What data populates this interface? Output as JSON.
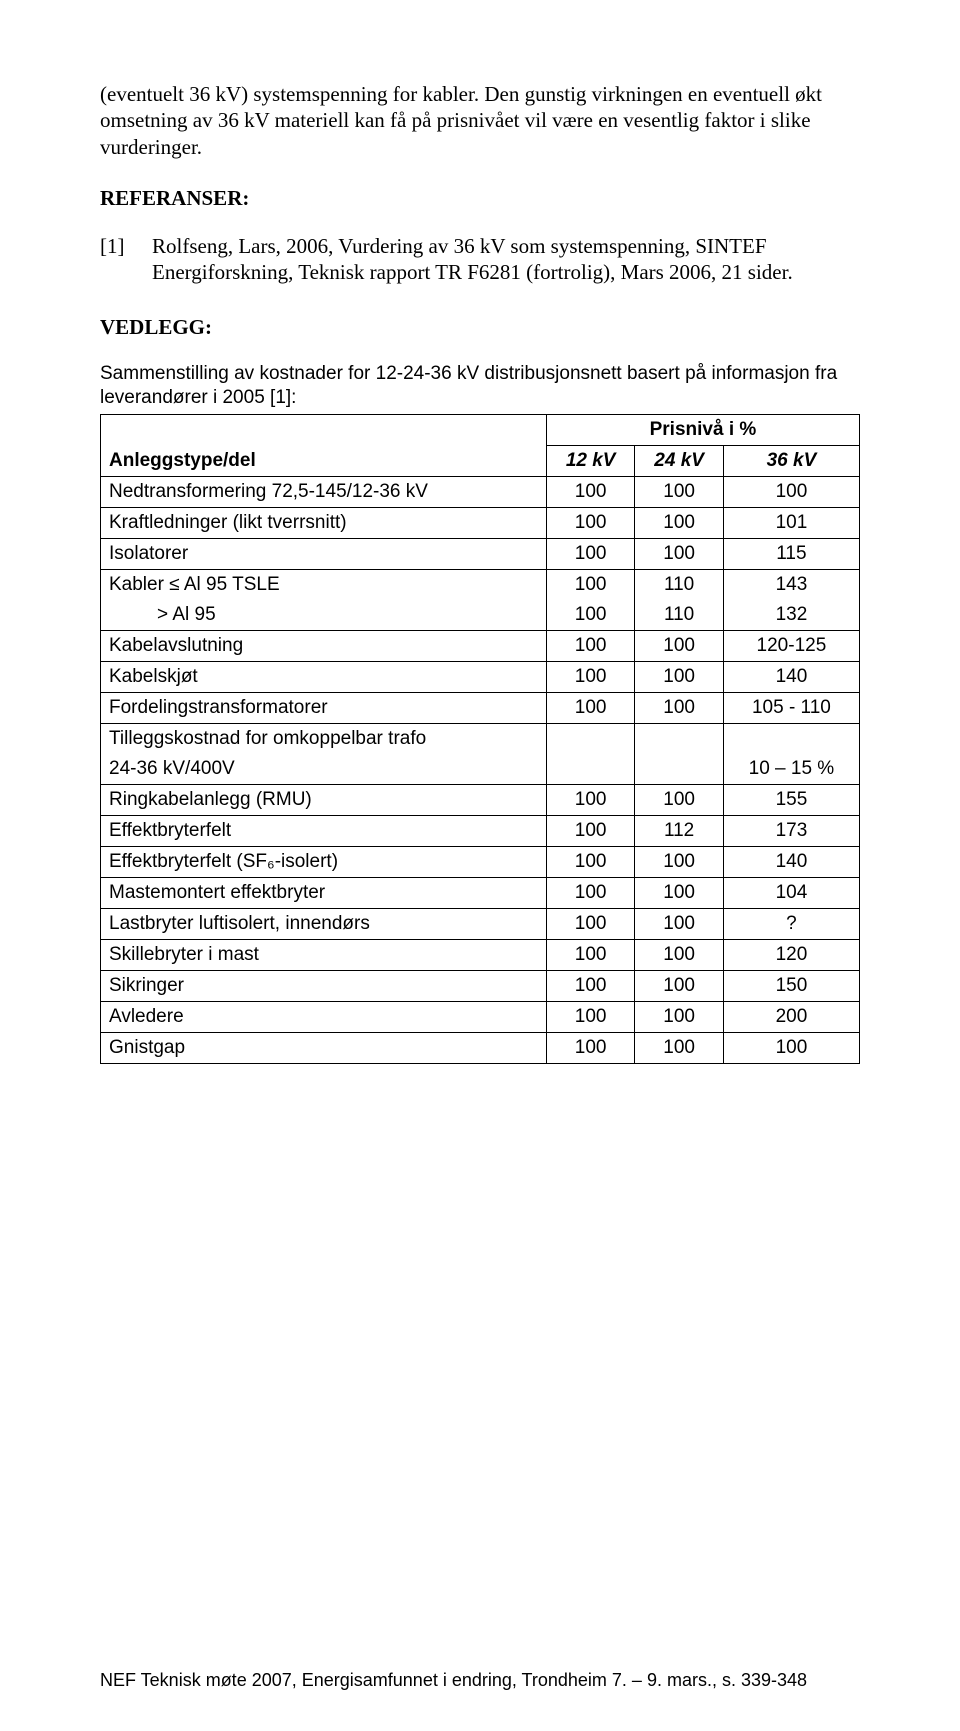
{
  "intro_paragraph": "(eventuelt 36 kV) systemspenning for kabler. Den gunstig virkningen en eventuell økt omsetning av 36 kV materiell kan få på prisnivået vil være en vesentlig faktor i slike vurderinger.",
  "references_heading": "REFERANSER:",
  "reference": {
    "num": "[1]",
    "text": "Rolfseng, Lars, 2006, Vurdering av 36 kV som systemspenning, SINTEF Energiforskning, Teknisk rapport TR F6281 (fortrolig), Mars 2006, 21 sider."
  },
  "vedlegg_heading": "VEDLEGG:",
  "table_caption": "Sammenstilling av kostnader for 12-24-36 kV distribusjonsnett basert på informasjon fra leverandører i 2005 [1]:",
  "prisniva_label": "Prisnivå i %",
  "column_headers": {
    "anleggstype": "Anleggstype/del",
    "c12": "12 kV",
    "c24": "24 kV",
    "c36": "36 kV"
  },
  "rows": [
    {
      "label": "Nedtransformering 72,5-145/12-36 kV",
      "c12": "100",
      "c24": "100",
      "c36": "100"
    },
    {
      "label": "Kraftledninger (likt tverrsnitt)",
      "c12": "100",
      "c24": "100",
      "c36": "101"
    },
    {
      "label": "Isolatorer",
      "c12": "100",
      "c24": "100",
      "c36": "115"
    },
    {
      "label": "Kabler ≤ Al 95 TSLE",
      "c12": "100",
      "c24": "110",
      "c36": "143",
      "continued": true
    },
    {
      "label_indent": "> Al 95",
      "c12": "100",
      "c24": "110",
      "c36": "132",
      "continuation": true
    },
    {
      "label": "Kabelavslutning",
      "c12": "100",
      "c24": "100",
      "c36": "120-125"
    },
    {
      "label": "Kabelskjøt",
      "c12": "100",
      "c24": "100",
      "c36": "140"
    },
    {
      "label": "Fordelingstransformatorer",
      "c12": "100",
      "c24": "100",
      "c36": "105 - 110"
    },
    {
      "label": "Tilleggskostnad for omkoppelbar trafo",
      "continued": true,
      "c12": "",
      "c24": "",
      "c36": ""
    },
    {
      "label": "24-36 kV/400V",
      "continuation": true,
      "c12": "",
      "c24": "",
      "c36": "10 – 15 %"
    },
    {
      "label": "Ringkabelanlegg (RMU)",
      "c12": "100",
      "c24": "100",
      "c36": "155"
    },
    {
      "label": "Effektbryterfelt",
      "c12": "100",
      "c24": "112",
      "c36": "173"
    },
    {
      "label": "Effektbryterfelt (SF₆-isolert)",
      "c12": "100",
      "c24": "100",
      "c36": "140"
    },
    {
      "label": "Mastemontert effektbryter",
      "c12": "100",
      "c24": "100",
      "c36": "104"
    },
    {
      "label": "Lastbryter luftisolert, innendørs",
      "c12": "100",
      "c24": "100",
      "c36": "?"
    },
    {
      "label": "Skillebryter i mast",
      "c12": "100",
      "c24": "100",
      "c36": "120"
    },
    {
      "label": "Sikringer",
      "c12": "100",
      "c24": "100",
      "c36": "150"
    },
    {
      "label": "Avledere",
      "c12": "100",
      "c24": "100",
      "c36": "200"
    },
    {
      "label": "Gnistgap",
      "c12": "100",
      "c24": "100",
      "c36": "100"
    }
  ],
  "footer": "NEF Teknisk møte 2007, Energisamfunnet i endring, Trondheim 7. – 9. mars., s. 339-348"
}
